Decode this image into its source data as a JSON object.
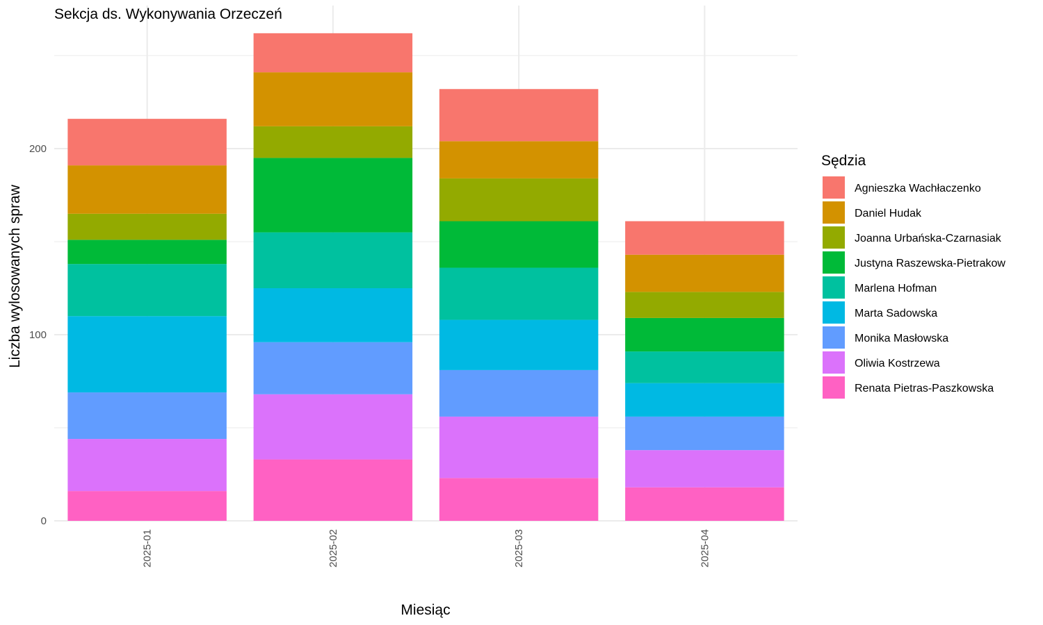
{
  "chart_data": {
    "type": "bar",
    "stacked": true,
    "title": "Sekcja ds. Wykonywania Orzeczeń",
    "xlabel": "Miesiąc",
    "ylabel": "Liczba wylosowanych spraw",
    "ylim": [
      0,
      262
    ],
    "yticks": [
      0,
      100,
      200
    ],
    "grid": true,
    "legend": {
      "title": "Sędzia",
      "position": "right"
    },
    "categories": [
      "2025-01",
      "2025-02",
      "2025-03",
      "2025-04"
    ],
    "series": [
      {
        "name": "Renata Pietras-Paszkowska",
        "color": "#FF61C3",
        "values": [
          16,
          33,
          23,
          18
        ]
      },
      {
        "name": "Oliwia Kostrzewa",
        "color": "#DB72FB",
        "values": [
          28,
          35,
          33,
          20
        ]
      },
      {
        "name": "Monika Masłowska",
        "color": "#619CFF",
        "values": [
          25,
          28,
          25,
          18
        ]
      },
      {
        "name": "Marta Sadowska",
        "color": "#00B9E3",
        "values": [
          41,
          29,
          27,
          18
        ]
      },
      {
        "name": "Marlena Hofman",
        "color": "#00C19F",
        "values": [
          28,
          30,
          28,
          17
        ]
      },
      {
        "name": "Justyna Raszewska-Pietrakow",
        "color": "#00BA38",
        "values": [
          13,
          40,
          25,
          18
        ]
      },
      {
        "name": "Joanna Urbańska-Czarnasiak",
        "color": "#93AA00",
        "values": [
          14,
          17,
          23,
          14
        ]
      },
      {
        "name": "Daniel Hudak",
        "color": "#D39200",
        "values": [
          26,
          29,
          20,
          20
        ]
      },
      {
        "name": "Agnieszka Wachłaczenko",
        "color": "#F8766D",
        "values": [
          25,
          21,
          28,
          18
        ]
      }
    ],
    "legend_order": [
      "Agnieszka Wachłaczenko",
      "Daniel Hudak",
      "Joanna Urbańska-Czarnasiak",
      "Justyna Raszewska-Pietrakow",
      "Marlena Hofman",
      "Marta Sadowska",
      "Monika Masłowska",
      "Oliwia Kostrzewa",
      "Renata Pietras-Paszkowska"
    ],
    "colors": {
      "grid": "#EBEBEB",
      "tick_text": "#4D4D4D",
      "background": "#FFFFFF"
    }
  }
}
